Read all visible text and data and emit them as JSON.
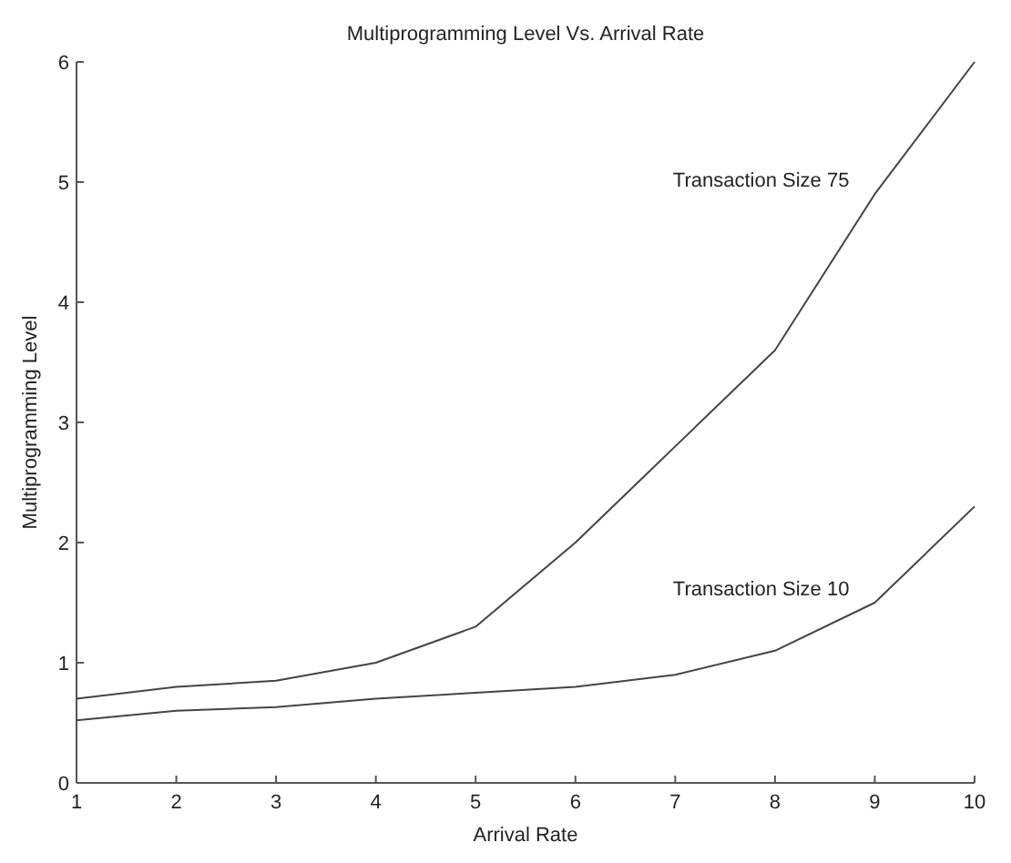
{
  "chart_data": {
    "type": "line",
    "title": "Multiprogramming Level Vs. Arrival Rate",
    "xlabel": "Arrival Rate",
    "ylabel": "Multiprogramming Level",
    "x": [
      1,
      2,
      3,
      4,
      5,
      6,
      7,
      8,
      9,
      10
    ],
    "series": [
      {
        "name": "Transaction Size 75",
        "color": "#444444",
        "values": [
          0.7,
          0.8,
          0.85,
          1.0,
          1.3,
          2.0,
          2.8,
          3.6,
          4.9,
          6.0
        ]
      },
      {
        "name": "Transaction Size 10",
        "color": "#444444",
        "values": [
          0.52,
          0.6,
          0.63,
          0.7,
          0.75,
          0.8,
          0.9,
          1.1,
          1.5,
          2.3
        ]
      }
    ],
    "xlim": [
      1,
      10
    ],
    "xticks": [
      1,
      2,
      3,
      4,
      5,
      6,
      7,
      8,
      9,
      10
    ],
    "ylim": [
      0,
      6
    ],
    "yticks": [
      0,
      1,
      2,
      3,
      4,
      5,
      6
    ],
    "grid": false,
    "marker": "none",
    "line_style": "solid"
  }
}
